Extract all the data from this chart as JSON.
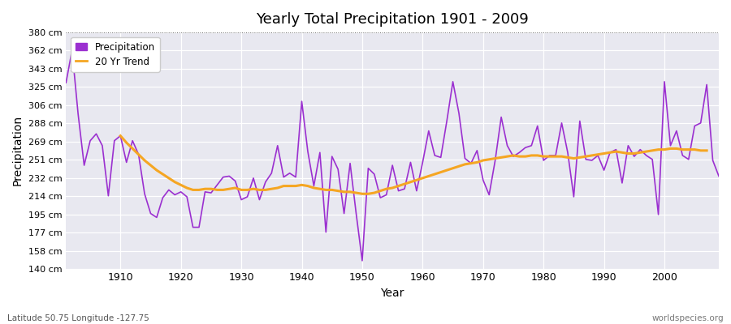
{
  "title": "Yearly Total Precipitation 1901 - 2009",
  "xlabel": "Year",
  "ylabel": "Precipitation",
  "footnote_left": "Latitude 50.75 Longitude -127.75",
  "footnote_right": "worldspecies.org",
  "ylim": [
    140,
    380
  ],
  "yticks": [
    140,
    158,
    177,
    195,
    214,
    232,
    251,
    269,
    288,
    306,
    325,
    343,
    362,
    380
  ],
  "ytick_labels": [
    "140 cm",
    "158 cm",
    "177 cm",
    "195 cm",
    "214 cm",
    "232 cm",
    "251 cm",
    "269 cm",
    "288 cm",
    "306 cm",
    "325 cm",
    "343 cm",
    "362 cm",
    "380 cm"
  ],
  "xticks": [
    1910,
    1920,
    1930,
    1940,
    1950,
    1960,
    1970,
    1980,
    1990,
    2000
  ],
  "precip_color": "#9b30d0",
  "trend_color": "#f5a623",
  "fig_facecolor": "#ffffff",
  "plot_facecolor": "#e8e8f0",
  "grid_color": "#ffffff",
  "legend_labels": [
    "Precipitation",
    "20 Yr Trend"
  ],
  "years": [
    1901,
    1902,
    1903,
    1904,
    1905,
    1906,
    1907,
    1908,
    1909,
    1910,
    1911,
    1912,
    1913,
    1914,
    1915,
    1916,
    1917,
    1918,
    1919,
    1920,
    1921,
    1922,
    1923,
    1924,
    1925,
    1926,
    1927,
    1928,
    1929,
    1930,
    1931,
    1932,
    1933,
    1934,
    1935,
    1936,
    1937,
    1938,
    1939,
    1940,
    1941,
    1942,
    1943,
    1944,
    1945,
    1946,
    1947,
    1948,
    1949,
    1950,
    1951,
    1952,
    1953,
    1954,
    1955,
    1956,
    1957,
    1958,
    1959,
    1960,
    1961,
    1962,
    1963,
    1964,
    1965,
    1966,
    1967,
    1968,
    1969,
    1970,
    1971,
    1972,
    1973,
    1974,
    1975,
    1976,
    1977,
    1978,
    1979,
    1980,
    1981,
    1982,
    1983,
    1984,
    1985,
    1986,
    1987,
    1988,
    1989,
    1990,
    1991,
    1992,
    1993,
    1994,
    1995,
    1996,
    1997,
    1998,
    1999,
    2000,
    2001,
    2002,
    2003,
    2004,
    2005,
    2006,
    2007,
    2008,
    2009
  ],
  "precip": [
    329,
    362,
    297,
    245,
    270,
    277,
    265,
    214,
    270,
    275,
    248,
    270,
    256,
    216,
    196,
    192,
    212,
    220,
    215,
    218,
    213,
    182,
    182,
    218,
    217,
    225,
    233,
    234,
    229,
    210,
    213,
    232,
    210,
    228,
    237,
    265,
    233,
    237,
    233,
    310,
    259,
    224,
    258,
    177,
    254,
    241,
    196,
    247,
    196,
    148,
    242,
    236,
    212,
    215,
    245,
    219,
    221,
    248,
    219,
    248,
    280,
    255,
    253,
    290,
    330,
    298,
    252,
    247,
    260,
    230,
    215,
    250,
    294,
    265,
    254,
    258,
    263,
    265,
    285,
    250,
    255,
    255,
    288,
    258,
    213,
    290,
    251,
    250,
    255,
    240,
    258,
    261,
    227,
    265,
    254,
    261,
    255,
    251,
    195,
    330,
    265,
    280,
    255,
    251,
    285,
    288,
    327,
    250,
    234
  ],
  "trend": [
    null,
    null,
    null,
    null,
    null,
    null,
    null,
    null,
    null,
    275,
    268,
    262,
    256,
    250,
    245,
    240,
    236,
    232,
    228,
    225,
    222,
    220,
    220,
    221,
    221,
    220,
    220,
    221,
    222,
    220,
    220,
    221,
    220,
    220,
    221,
    222,
    224,
    224,
    224,
    225,
    224,
    222,
    221,
    220,
    220,
    219,
    218,
    218,
    217,
    216,
    216,
    217,
    219,
    221,
    222,
    224,
    226,
    228,
    230,
    232,
    234,
    236,
    238,
    240,
    242,
    244,
    246,
    247,
    248,
    250,
    251,
    252,
    253,
    254,
    255,
    254,
    254,
    255,
    255,
    254,
    254,
    254,
    254,
    253,
    252,
    253,
    254,
    255,
    256,
    257,
    258,
    259,
    258,
    257,
    257,
    258,
    259,
    260,
    261,
    261,
    262,
    262,
    261,
    261,
    261,
    260,
    260,
    null,
    null
  ]
}
